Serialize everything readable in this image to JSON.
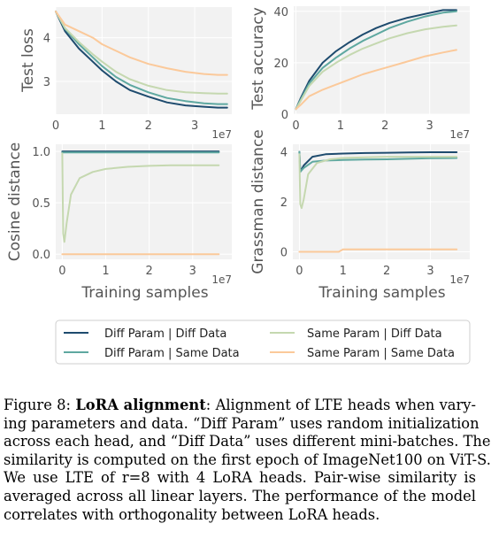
{
  "chart_data": [
    {
      "type": "line",
      "id": "test-loss",
      "ylabel": "Test loss",
      "xlabel": "",
      "x_offset_label": "1e7",
      "xlim": [
        0,
        3.8
      ],
      "ylim": [
        2.25,
        4.7
      ],
      "xticks": [
        0,
        1,
        2,
        3
      ],
      "yticks": [
        3,
        4
      ],
      "series": [
        {
          "name": "Diff Param | Diff Data",
          "x": [
            0,
            0.2,
            0.5,
            0.8,
            1.0,
            1.3,
            1.6,
            2.0,
            2.4,
            2.8,
            3.2,
            3.5,
            3.7
          ],
          "y": [
            4.6,
            4.15,
            3.75,
            3.45,
            3.25,
            3.0,
            2.8,
            2.65,
            2.52,
            2.45,
            2.42,
            2.4,
            2.4
          ]
        },
        {
          "name": "Diff Param | Same Data",
          "x": [
            0,
            0.2,
            0.5,
            0.8,
            1.0,
            1.3,
            1.6,
            2.0,
            2.4,
            2.8,
            3.2,
            3.5,
            3.7
          ],
          "y": [
            4.6,
            4.2,
            3.85,
            3.55,
            3.35,
            3.1,
            2.92,
            2.75,
            2.62,
            2.55,
            2.5,
            2.48,
            2.48
          ]
        },
        {
          "name": "Same Param | Diff Data",
          "x": [
            0,
            0.2,
            0.5,
            0.8,
            1.0,
            1.3,
            1.6,
            2.0,
            2.4,
            2.8,
            3.2,
            3.5,
            3.7
          ],
          "y": [
            4.6,
            4.22,
            3.9,
            3.62,
            3.45,
            3.22,
            3.05,
            2.9,
            2.8,
            2.75,
            2.73,
            2.72,
            2.72
          ]
        },
        {
          "name": "Same Param | Same Data",
          "x": [
            0,
            0.2,
            0.5,
            0.8,
            1.0,
            1.3,
            1.6,
            2.0,
            2.4,
            2.8,
            3.2,
            3.5,
            3.7
          ],
          "y": [
            4.6,
            4.3,
            4.15,
            4.0,
            3.85,
            3.7,
            3.55,
            3.4,
            3.3,
            3.22,
            3.17,
            3.15,
            3.15
          ]
        }
      ]
    },
    {
      "type": "line",
      "id": "test-accuracy",
      "ylabel": "Test accuracy",
      "xlabel": "",
      "x_offset_label": "1e7",
      "xlim": [
        -0.05,
        3.9
      ],
      "ylim": [
        0,
        42
      ],
      "xticks": [
        0,
        1,
        2,
        3
      ],
      "yticks": [
        0,
        20,
        40
      ],
      "series": [
        {
          "name": "Diff Param | Diff Data",
          "x": [
            0,
            0.1,
            0.3,
            0.6,
            0.9,
            1.2,
            1.5,
            1.8,
            2.1,
            2.5,
            2.9,
            3.3,
            3.6
          ],
          "y": [
            2,
            6,
            13,
            20,
            24.5,
            28,
            31,
            33.5,
            35.5,
            37.5,
            39,
            40.5,
            40.5
          ]
        },
        {
          "name": "Diff Param | Same Data",
          "x": [
            0,
            0.1,
            0.3,
            0.6,
            0.9,
            1.2,
            1.5,
            1.8,
            2.1,
            2.5,
            2.9,
            3.3,
            3.6
          ],
          "y": [
            2,
            5.5,
            12,
            18,
            22,
            25.5,
            28.5,
            31,
            33.5,
            36,
            38,
            39.5,
            40
          ]
        },
        {
          "name": "Same Param | Diff Data",
          "x": [
            0,
            0.1,
            0.3,
            0.6,
            0.9,
            1.2,
            1.5,
            1.8,
            2.1,
            2.5,
            2.9,
            3.3,
            3.6
          ],
          "y": [
            2,
            5,
            11,
            16.5,
            20,
            23,
            25.5,
            27.5,
            29.5,
            31.5,
            33,
            34,
            34.5
          ]
        },
        {
          "name": "Same Param | Same Data",
          "x": [
            0,
            0.1,
            0.3,
            0.6,
            0.9,
            1.2,
            1.5,
            1.8,
            2.1,
            2.5,
            2.9,
            3.3,
            3.6
          ],
          "y": [
            2,
            3.5,
            7,
            9.5,
            11.5,
            13.5,
            15.5,
            17,
            18.5,
            20.5,
            22.5,
            24,
            25
          ]
        }
      ]
    },
    {
      "type": "line",
      "id": "cosine-distance",
      "ylabel": "Cosine distance",
      "xlabel": "Training samples",
      "x_offset_label": "1e7",
      "xlim": [
        -0.15,
        3.9
      ],
      "ylim": [
        -0.05,
        1.07
      ],
      "xticks": [
        0,
        1,
        2,
        3
      ],
      "yticks": [
        0.0,
        0.5,
        1.0
      ],
      "yticklabels": [
        "0.0",
        "0.5",
        "1.0"
      ],
      "series": [
        {
          "name": "Diff Param | Diff Data",
          "x": [
            0,
            0.02,
            0.1,
            1,
            2,
            3,
            3.6
          ],
          "y": [
            1.0,
            1.0,
            1.0,
            1.0,
            1.0,
            1.0,
            1.0
          ]
        },
        {
          "name": "Diff Param | Same Data",
          "x": [
            0,
            0.02,
            0.1,
            1,
            2,
            3,
            3.6
          ],
          "y": [
            0.99,
            0.99,
            0.99,
            0.99,
            0.99,
            0.99,
            0.99
          ]
        },
        {
          "name": "Same Param | Diff Data",
          "x": [
            0,
            0.02,
            0.05,
            0.1,
            0.2,
            0.4,
            0.7,
            1.0,
            1.5,
            2.0,
            2.5,
            3.0,
            3.6
          ],
          "y": [
            0.98,
            0.2,
            0.12,
            0.3,
            0.58,
            0.74,
            0.8,
            0.83,
            0.85,
            0.86,
            0.865,
            0.865,
            0.865
          ]
        },
        {
          "name": "Same Param | Same Data",
          "x": [
            0,
            1,
            2,
            3,
            3.6
          ],
          "y": [
            0.0,
            0.0,
            0.0,
            0.0,
            0.0
          ]
        }
      ]
    },
    {
      "type": "line",
      "id": "grassman-distance",
      "ylabel": "Grassman distance",
      "xlabel": "Training samples",
      "x_offset_label": "1e7",
      "xlim": [
        -0.15,
        3.9
      ],
      "ylim": [
        -0.3,
        4.3
      ],
      "xticks": [
        0,
        1,
        2,
        3
      ],
      "yticks": [
        0,
        2,
        4
      ],
      "series": [
        {
          "name": "Diff Param | Diff Data",
          "x": [
            0,
            0.02,
            0.1,
            0.3,
            0.6,
            1.0,
            1.5,
            2.0,
            2.5,
            3.0,
            3.6
          ],
          "y": [
            4.0,
            3.2,
            3.45,
            3.8,
            3.9,
            3.93,
            3.95,
            3.96,
            3.97,
            3.98,
            3.98
          ]
        },
        {
          "name": "Diff Param | Same Data",
          "x": [
            0,
            0.02,
            0.1,
            0.3,
            0.6,
            1.0,
            1.5,
            2.0,
            2.5,
            3.0,
            3.6
          ],
          "y": [
            4.0,
            3.2,
            3.35,
            3.6,
            3.65,
            3.67,
            3.69,
            3.7,
            3.72,
            3.74,
            3.75
          ]
        },
        {
          "name": "Same Param | Diff Data",
          "x": [
            0,
            0.02,
            0.05,
            0.1,
            0.2,
            0.4,
            0.7,
            1.0,
            1.5,
            2.0,
            2.5,
            3.0,
            3.6
          ],
          "y": [
            3.9,
            1.9,
            1.75,
            2.1,
            3.1,
            3.55,
            3.7,
            3.75,
            3.78,
            3.8,
            3.8,
            3.8,
            3.8
          ]
        },
        {
          "name": "Same Param | Same Data",
          "x": [
            0,
            0.9,
            0.95,
            1.0,
            1.5,
            2.0,
            2.5,
            3.0,
            3.6
          ],
          "y": [
            0.0,
            0.0,
            0.05,
            0.1,
            0.1,
            0.1,
            0.1,
            0.1,
            0.1
          ]
        }
      ]
    }
  ],
  "legend": {
    "entries": [
      {
        "label": "Diff Param | Diff Data",
        "color": "#1e4b6e"
      },
      {
        "label": "Same Param | Diff Data",
        "color": "#c5d8b0"
      },
      {
        "label": "Diff Param | Same Data",
        "color": "#5ea8a0"
      },
      {
        "label": "Same Param | Same Data",
        "color": "#fbc99a"
      }
    ]
  },
  "colors": {
    "Diff Param | Diff Data": "#1e4b6e",
    "Diff Param | Same Data": "#5ea8a0",
    "Same Param | Diff Data": "#c5d8b0",
    "Same Param | Same Data": "#fbc99a",
    "plot_background": "#f2f2f2",
    "grid": "#ffffff"
  },
  "caption": {
    "figure_number": "Figure 8:",
    "title": "LoRA alignment",
    "lines": [
      ": Alignment of LTE heads when vary-",
      "ing parameters and data. “Diff Param” uses random initialization",
      "across each head, and “Diff Data” uses different mini-batches. The",
      "similarity is computed on the first epoch of ImageNet100 on ViT-S.",
      "We use LTE of r=8 with 4 LoRA heads. Pair-wise similarity is",
      "averaged across all linear layers. The performance of the model",
      "correlates with orthogonality between LoRA heads."
    ]
  }
}
